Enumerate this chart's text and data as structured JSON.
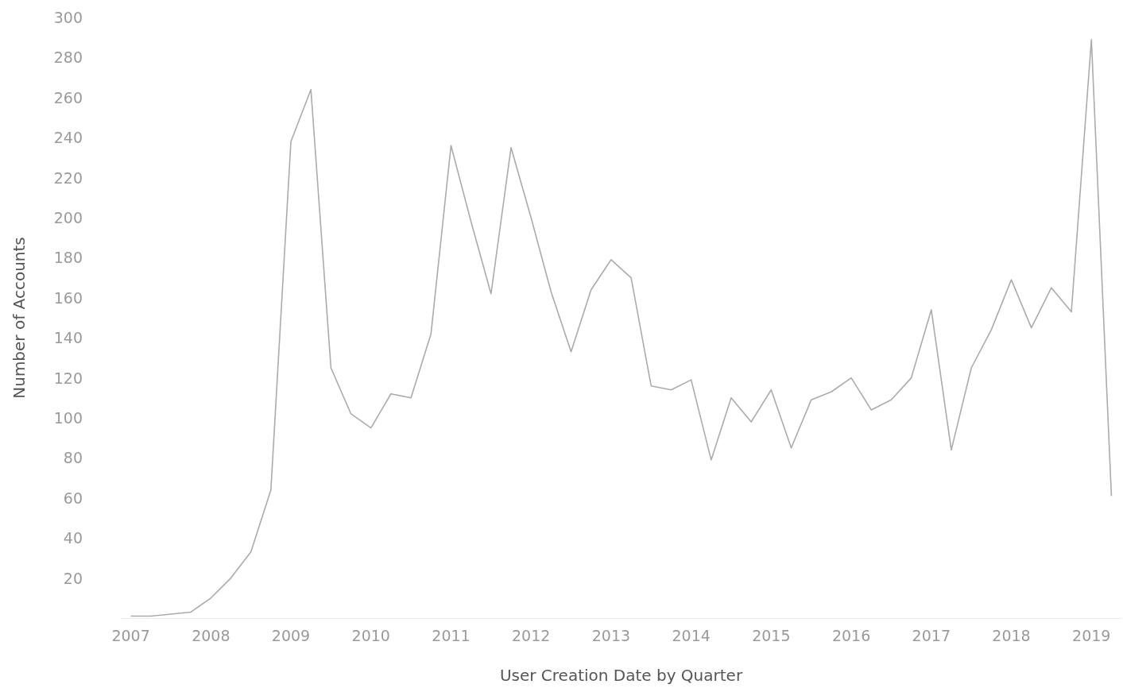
{
  "chart_data": {
    "type": "line",
    "xlabel": "User Creation Date by Quarter",
    "ylabel": "Number of Accounts",
    "categories": [
      "2007",
      null,
      null,
      null,
      "2008",
      null,
      null,
      null,
      "2009",
      null,
      null,
      null,
      "2010",
      null,
      null,
      null,
      "2011",
      null,
      null,
      null,
      "2012",
      null,
      null,
      null,
      "2013",
      null,
      null,
      null,
      "2014",
      null,
      null,
      null,
      "2015",
      null,
      null,
      null,
      "2016",
      null,
      null,
      null,
      "2017",
      null,
      null,
      null,
      "2018",
      null,
      null,
      null,
      "2019",
      null
    ],
    "series": [
      {
        "color": "#ababab",
        "values": [
          1,
          1,
          2,
          3,
          10,
          20,
          33,
          64,
          238,
          264,
          125,
          102,
          95,
          112,
          110,
          142,
          236,
          198,
          162,
          235,
          200,
          163,
          133,
          164,
          179,
          170,
          116,
          114,
          119,
          79,
          110,
          98,
          114,
          85,
          109,
          113,
          120,
          104,
          109,
          120,
          154,
          84,
          125,
          144,
          169,
          145,
          165,
          153,
          289,
          61
        ]
      }
    ],
    "ylim": [
      0,
      300
    ],
    "yticks": [
      20,
      40,
      60,
      80,
      100,
      120,
      140,
      160,
      180,
      200,
      220,
      240,
      260,
      280,
      300
    ],
    "grid": false,
    "marker": "none",
    "line_style": "solid"
  }
}
